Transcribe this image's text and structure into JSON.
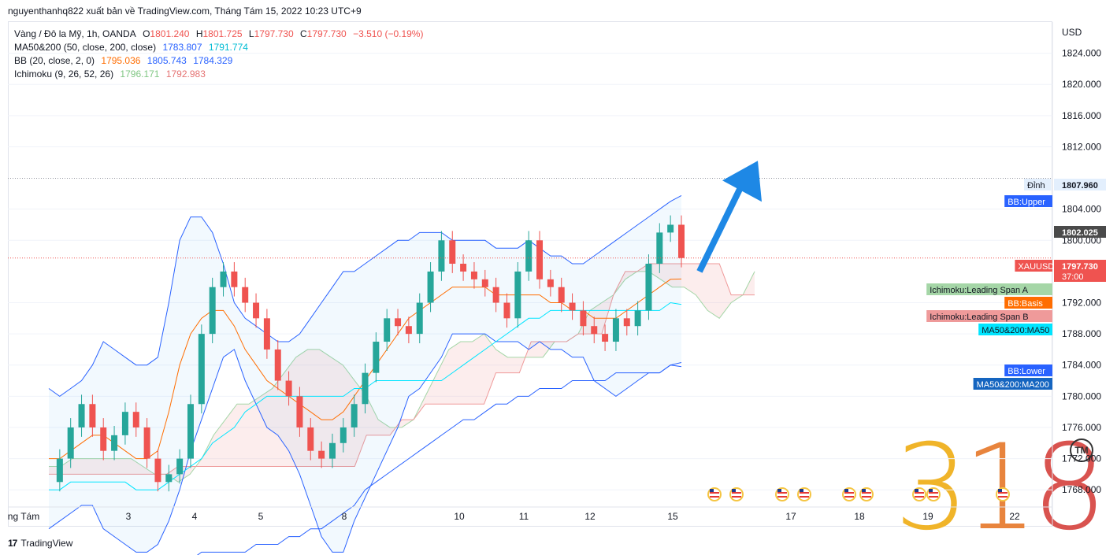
{
  "header": {
    "text": "nguyenthanhq822 xuất bản về TradingView.com, Tháng Tám 15, 2022 10:23 UTC+9"
  },
  "legend": {
    "symbol": "Vàng / Đô la Mỹ, 1h, OANDA",
    "o_label": "O",
    "o": "1801.240",
    "h_label": "H",
    "h": "1801.725",
    "l_label": "L",
    "l": "1797.730",
    "c_label": "C",
    "c": "1797.730",
    "change": "−3.510 (−0.19%)",
    "ma": {
      "label": "MA50&200 (50, close, 200, close)",
      "v1": "1783.807",
      "v2": "1791.774",
      "c1": "#2962ff",
      "c2": "#00bcd4"
    },
    "bb": {
      "label": "BB (20, close, 2, 0)",
      "v1": "1795.036",
      "v2": "1805.743",
      "v3": "1784.329",
      "c1": "#ff6d00",
      "c2": "#2962ff",
      "c3": "#2962ff"
    },
    "ichimoku": {
      "label": "Ichimoku (9, 26, 52, 26)",
      "v1": "1796.171",
      "v2": "1792.983",
      "c1": "#81c784",
      "c2": "#e57373"
    }
  },
  "footer": {
    "brand": "TradingView",
    "logo": "17"
  },
  "watermark": {
    "d1": "3",
    "d2": "1",
    "d3": "8",
    "tm": "TM"
  },
  "chart_data": {
    "type": "line",
    "title": "Vàng / Đô la Mỹ, 1h, OANDA",
    "currency": "USD",
    "ylim": [
      1766,
      1828
    ],
    "y_ticks": [
      "1824.000",
      "1820.000",
      "1816.000",
      "1812.000",
      "1804.000",
      "1800.000",
      "1792.000",
      "1788.000",
      "1784.000",
      "1780.000",
      "1776.000",
      "1772.000",
      "1768.000"
    ],
    "x_ticks": [
      "ng Tám",
      "3",
      "4",
      "5",
      "8",
      "10",
      "11",
      "12",
      "15",
      "17",
      "18",
      "19",
      "22"
    ],
    "price_labels": [
      {
        "text": "Đỉnh",
        "value": "1807.960",
        "bg": "#e3effd",
        "fg": "#131722"
      },
      {
        "text": "BB:Upper",
        "bg": "#2962ff",
        "fg": "#ffffff"
      },
      {
        "text": "",
        "value": "1802.025",
        "bg": "#4a4a4a",
        "fg": "#ffffff"
      },
      {
        "text": "XAUUSD",
        "value": "1797.730",
        "sub": "37:00",
        "bg": "#ef5350",
        "fg": "#ffffff"
      },
      {
        "text": "Ichimoku:Leading Span A",
        "bg": "#a5d6a7",
        "fg": "#131722"
      },
      {
        "text": "BB:Basis",
        "bg": "#ff6d00",
        "fg": "#ffffff"
      },
      {
        "text": "Ichimoku:Leading Span B",
        "bg": "#ef9a9a",
        "fg": "#131722"
      },
      {
        "text": "MA50&200:MA50",
        "bg": "#00e5ff",
        "fg": "#131722"
      },
      {
        "text": "BB:Lower",
        "bg": "#2962ff",
        "fg": "#ffffff"
      },
      {
        "text": "MA50&200:MA200",
        "bg": "#1565c0",
        "fg": "#ffffff"
      }
    ],
    "close_price": [
      1769,
      1772,
      1776,
      1779,
      1776,
      1773,
      1775,
      1778,
      1776,
      1772,
      1769,
      1770,
      1772,
      1779,
      1788,
      1794,
      1796,
      1794,
      1792,
      1790,
      1786,
      1782,
      1780,
      1776,
      1773,
      1772,
      1774,
      1776,
      1779,
      1783,
      1787,
      1790,
      1789,
      1788,
      1792,
      1796,
      1800,
      1797,
      1796,
      1795,
      1794,
      1792,
      1790,
      1796,
      1800,
      1795,
      1794,
      1792,
      1791,
      1789,
      1788,
      1787,
      1790,
      1789,
      1791,
      1797,
      1801,
      1802,
      1797.73
    ],
    "bb_upper": [
      1781,
      1780,
      1781,
      1782,
      1784,
      1787,
      1786,
      1785,
      1784,
      1784,
      1785,
      1792,
      1800,
      1803,
      1803,
      1801,
      1797,
      1792,
      1790,
      1789,
      1788,
      1787,
      1787,
      1788,
      1790,
      1792,
      1794,
      1796,
      1796,
      1797,
      1798,
      1799,
      1800,
      1800,
      1801,
      1801,
      1801,
      1800,
      1800,
      1800,
      1800,
      1799,
      1799,
      1799,
      1800,
      1799,
      1798,
      1798,
      1797,
      1797,
      1798,
      1799,
      1800,
      1801,
      1802,
      1803,
      1804,
      1805,
      1805.743
    ],
    "bb_basis": [
      1772,
      1772,
      1773,
      1774,
      1775,
      1775,
      1774,
      1773,
      1772,
      1772,
      1773,
      1778,
      1784,
      1788,
      1790,
      1791,
      1791,
      1789,
      1786,
      1784,
      1782,
      1781,
      1780,
      1779,
      1778,
      1777,
      1777,
      1778,
      1780,
      1782,
      1784,
      1786,
      1788,
      1790,
      1791,
      1792,
      1793,
      1794,
      1794,
      1794,
      1794,
      1793,
      1793,
      1793,
      1793,
      1793,
      1792,
      1792,
      1791,
      1791,
      1790,
      1790,
      1790,
      1791,
      1792,
      1793,
      1794,
      1795,
      1795.036
    ],
    "bb_lower": [
      1763,
      1764,
      1765,
      1766,
      1766,
      1763,
      1762,
      1761,
      1760,
      1760,
      1761,
      1764,
      1768,
      1773,
      1777,
      1781,
      1785,
      1786,
      1782,
      1779,
      1776,
      1775,
      1773,
      1770,
      1766,
      1762,
      1760,
      1760,
      1764,
      1767,
      1770,
      1773,
      1776,
      1780,
      1781,
      1783,
      1785,
      1788,
      1788,
      1788,
      1788,
      1787,
      1787,
      1787,
      1786,
      1787,
      1786,
      1786,
      1785,
      1785,
      1782,
      1781,
      1780,
      1781,
      1782,
      1783,
      1783,
      1784,
      1784.329
    ],
    "ma50": [
      1768,
      1768,
      1769,
      1769,
      1769,
      1769,
      1769,
      1769,
      1768,
      1768,
      1768,
      1769,
      1770,
      1771,
      1772,
      1774,
      1775,
      1776,
      1778,
      1779,
      1780,
      1780,
      1780,
      1780,
      1780,
      1780,
      1780,
      1780,
      1781,
      1781,
      1782,
      1782,
      1782,
      1782,
      1782,
      1782,
      1782,
      1783,
      1784,
      1785,
      1786,
      1787,
      1788,
      1789,
      1790,
      1790,
      1791,
      1791,
      1791,
      1791,
      1791,
      1791,
      1791,
      1791,
      1791,
      1791,
      1791,
      1792,
      1791.774
    ],
    "ma200": [
      1758,
      1758,
      1758,
      1758,
      1759,
      1759,
      1759,
      1759,
      1759,
      1759,
      1759,
      1759,
      1759,
      1759,
      1760,
      1760,
      1760,
      1760,
      1760,
      1761,
      1761,
      1761,
      1762,
      1762,
      1763,
      1763,
      1764,
      1765,
      1766,
      1768,
      1769,
      1770,
      1771,
      1772,
      1773,
      1774,
      1775,
      1776,
      1777,
      1777,
      1778,
      1779,
      1779,
      1780,
      1780,
      1781,
      1781,
      1781,
      1782,
      1782,
      1782,
      1782,
      1783,
      1783,
      1783,
      1783,
      1783,
      1784,
      1783.807
    ],
    "span_a": [
      1771,
      1771,
      1772,
      1772,
      1772,
      1772,
      1772,
      1772,
      1771,
      1770,
      1770,
      1769,
      1770,
      1772,
      1775,
      1777,
      1779,
      1779,
      1780,
      1781,
      1783,
      1785,
      1786,
      1786,
      1785,
      1784,
      1782,
      1780,
      1777,
      1776,
      1776,
      1777,
      1780,
      1783,
      1786,
      1787,
      1787,
      1788,
      1786,
      1785,
      1785,
      1785,
      1785,
      1787,
      1787,
      1788,
      1791,
      1792,
      1793,
      1795,
      1796,
      1796,
      1795,
      1794,
      1794,
      1793,
      1791,
      1790,
      1792,
      1793,
      1796
    ],
    "span_b": [
      1770,
      1770,
      1770,
      1770,
      1770,
      1770,
      1770,
      1770,
      1770,
      1770,
      1770,
      1771,
      1771,
      1771,
      1771,
      1771,
      1771,
      1771,
      1771,
      1771,
      1771,
      1771,
      1771,
      1771,
      1771,
      1771,
      1771,
      1775,
      1775,
      1775,
      1777,
      1777,
      1779,
      1779,
      1779,
      1779,
      1779,
      1779,
      1783,
      1783,
      1783,
      1787,
      1787,
      1787,
      1787,
      1788,
      1788,
      1788,
      1793,
      1796,
      1796,
      1797,
      1797,
      1797,
      1797,
      1797,
      1797,
      1797,
      1793,
      1793,
      1793
    ],
    "arrow": {
      "from": [
        1796,
        0
      ],
      "to": [
        1810,
        0
      ],
      "color": "#1e88e5"
    }
  }
}
